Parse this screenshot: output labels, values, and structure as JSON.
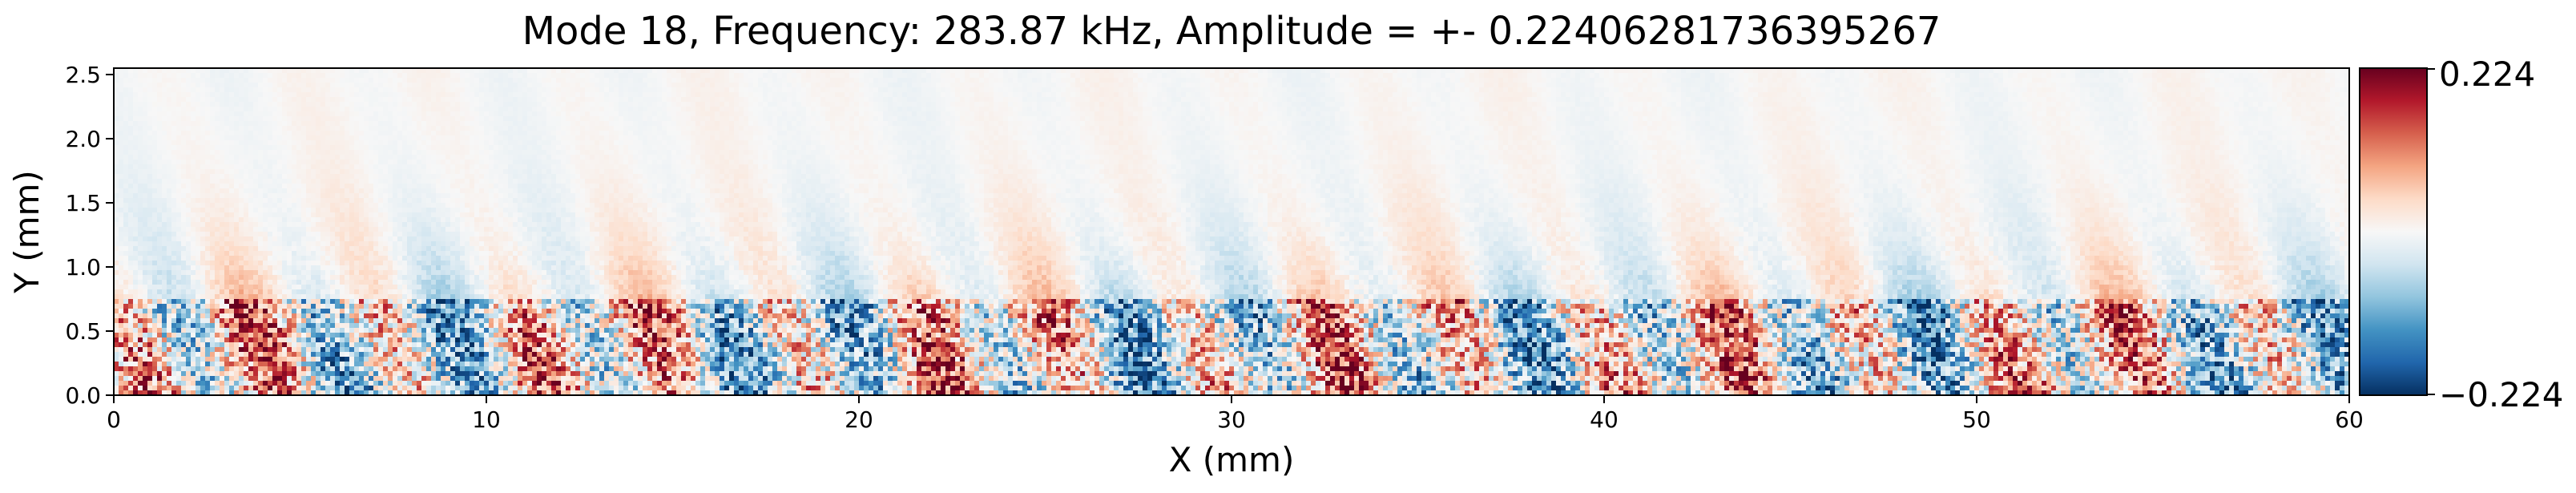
{
  "chart_data": {
    "type": "heatmap",
    "title": "Mode 18, Frequency: 283.87 kHz, Amplitude = +- 0.22406281736395267",
    "xlabel": "X (mm)",
    "ylabel": "Y (mm)",
    "xlim": [
      0,
      60
    ],
    "ylim": [
      0,
      2.55
    ],
    "xticks": [
      0,
      10,
      20,
      30,
      40,
      50,
      60
    ],
    "yticks": [
      0.0,
      0.5,
      1.0,
      1.5,
      2.0,
      2.5
    ],
    "xtick_labels": [
      "0",
      "10",
      "20",
      "30",
      "40",
      "50",
      "60"
    ],
    "ytick_labels": [
      "0.0",
      "0.5",
      "1.0",
      "1.5",
      "2.0",
      "2.5"
    ],
    "colormap": "RdBu_r",
    "colorbar": {
      "min": -0.224,
      "max": 0.224,
      "labels": [
        "0.224",
        "−0.224"
      ],
      "colors": [
        "#67001f",
        "#b2182b",
        "#d6604d",
        "#f4a582",
        "#fddbc7",
        "#f7f7f7",
        "#d1e5f0",
        "#92c5de",
        "#4393c3",
        "#2166ac",
        "#053061"
      ]
    },
    "z_range": [
      -0.22406281736395267,
      0.22406281736395267
    ],
    "grid": false
  }
}
